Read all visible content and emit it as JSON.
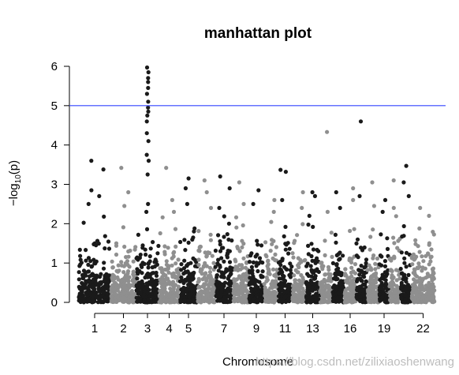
{
  "chart_data": {
    "type": "scatter",
    "title": "manhattan plot",
    "xlabel": "Chromosome",
    "ylabel_prefix": "−log",
    "ylabel_sub": "10",
    "ylabel_suffix": "(p)",
    "ylim": [
      0,
      6
    ],
    "y_ticks": [
      0,
      1,
      2,
      3,
      4,
      5,
      6
    ],
    "x_tick_labels": [
      "1",
      "2",
      "3",
      "4",
      "5",
      "7",
      "9",
      "11",
      "13",
      "16",
      "19",
      "22"
    ],
    "x_tick_chromosomes": [
      1,
      2,
      3,
      4,
      5,
      7,
      9,
      11,
      13,
      16,
      19,
      22
    ],
    "threshold_line": {
      "y": 5,
      "color": "#3344ff"
    },
    "colors": {
      "odd": "#1a1a1a",
      "even": "#8f8f8f"
    },
    "chromosomes": [
      {
        "chr": 1,
        "top_hits": [
          3.6,
          3.38,
          2.85,
          2.7,
          2.5
        ]
      },
      {
        "chr": 2,
        "top_hits": [
          3.42,
          2.8,
          2.45
        ]
      },
      {
        "chr": 3,
        "top_hits": [
          5.97,
          5.85,
          5.7,
          5.6,
          5.45,
          5.3,
          5.1,
          4.95,
          4.85,
          4.75,
          4.6,
          4.3,
          4.1,
          3.75,
          3.6,
          3.25,
          2.5,
          2.3
        ]
      },
      {
        "chr": 4,
        "top_hits": [
          3.42,
          2.6,
          2.3
        ]
      },
      {
        "chr": 5,
        "top_hits": [
          3.15,
          2.9,
          2.5
        ]
      },
      {
        "chr": 6,
        "top_hits": [
          3.1,
          2.8,
          2.4
        ]
      },
      {
        "chr": 7,
        "top_hits": [
          3.2,
          2.9,
          2.4
        ]
      },
      {
        "chr": 8,
        "top_hits": [
          3.05,
          2.5
        ]
      },
      {
        "chr": 9,
        "top_hits": [
          2.85,
          2.5
        ]
      },
      {
        "chr": 10,
        "top_hits": [
          2.6,
          2.3
        ]
      },
      {
        "chr": 11,
        "top_hits": [
          3.37,
          3.32,
          2.6
        ]
      },
      {
        "chr": 12,
        "top_hits": [
          2.8,
          2.4
        ]
      },
      {
        "chr": 13,
        "top_hits": [
          2.8,
          2.7,
          2.2
        ]
      },
      {
        "chr": 14,
        "top_hits": [
          4.33,
          2.3
        ]
      },
      {
        "chr": 15,
        "top_hits": [
          2.8,
          2.4
        ]
      },
      {
        "chr": 16,
        "top_hits": [
          2.9,
          2.6
        ]
      },
      {
        "chr": 17,
        "top_hits": [
          4.6,
          2.7
        ]
      },
      {
        "chr": 18,
        "top_hits": [
          3.05,
          2.45
        ]
      },
      {
        "chr": 19,
        "top_hits": [
          2.6,
          2.3
        ]
      },
      {
        "chr": 20,
        "top_hits": [
          3.1,
          2.4
        ]
      },
      {
        "chr": 21,
        "top_hits": [
          3.47,
          3.05,
          2.7
        ]
      },
      {
        "chr": 22,
        "top_hits": [
          2.4,
          2.2
        ]
      }
    ]
  },
  "watermark": "https://blog.csdn.net/zilixiaoshenwang"
}
